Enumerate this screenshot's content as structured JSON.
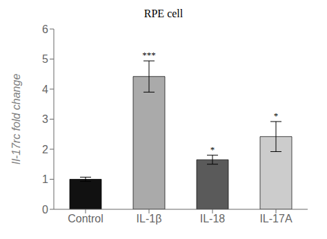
{
  "chart_data": {
    "type": "bar",
    "title": "RPE cell",
    "categories": [
      "Control",
      "IL-1β",
      "IL-18",
      "IL-17A"
    ],
    "values": [
      1.0,
      4.42,
      1.65,
      2.42
    ],
    "errors": [
      0.07,
      0.52,
      0.15,
      0.5
    ],
    "colors": [
      "#111111",
      "#aaaaaa",
      "#5a5a5a",
      "#cccccc"
    ],
    "ylabel": "Il-17rc fold change",
    "ylim": [
      0,
      6
    ],
    "yticks": [
      0,
      1,
      2,
      3,
      4,
      5,
      6
    ],
    "significance": [
      null,
      "***",
      "*",
      "*"
    ],
    "grid": false
  }
}
